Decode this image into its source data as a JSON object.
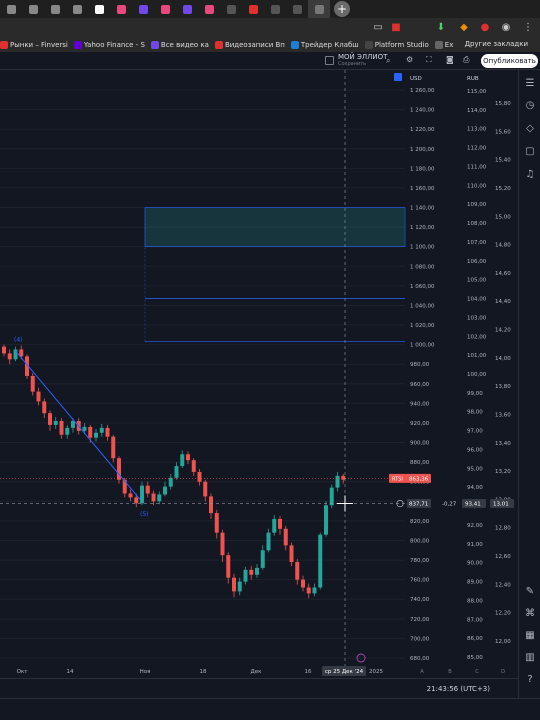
{
  "browser": {
    "bookmarks": [
      {
        "label": "Рынки – Finversi",
        "color": "#e03131"
      },
      {
        "label": "Yahoo Finance - S",
        "color": "#6001d2"
      },
      {
        "label": "Все видео ка",
        "color": "#7048e8"
      },
      {
        "label": "Видеозаписи Вп",
        "color": "#e03131"
      },
      {
        "label": "Трейдер Клабш",
        "color": "#1c7ed6"
      },
      {
        "label": "Platform Studio",
        "color": "#444"
      },
      {
        "label": "Ex",
        "color": "#666"
      }
    ],
    "other_bookmarks": "Другие закладки"
  },
  "header": {
    "layout_name": "МОЙ ЭЛЛИОТ",
    "layout_status": "Сохранить",
    "publish_label": "Опубликовать"
  },
  "axes": {
    "currency_left": "USD",
    "currency_mid": "RUB",
    "usd_ticks": [
      "1 260,00",
      "1 240,00",
      "1 220,00",
      "1 200,00",
      "1 180,00",
      "1 160,00",
      "1 140,00",
      "1 120,00",
      "1 100,00",
      "1 080,00",
      "1 060,00",
      "1 040,00",
      "1 020,00",
      "1 000,00",
      "980,00",
      "960,00",
      "940,00",
      "920,00",
      "900,00",
      "880,00",
      "860,00",
      "840,00",
      "820,00",
      "800,00",
      "780,00",
      "760,00",
      "740,00",
      "720,00",
      "700,00",
      "680,00"
    ],
    "rub_ticks": [
      "115,00",
      "114,00",
      "113,00",
      "112,00",
      "111,00",
      "110,00",
      "109,00",
      "108,00",
      "107,00",
      "106,00",
      "105,00",
      "104,00",
      "103,00",
      "102,00",
      "101,00",
      "100,00",
      "99,00",
      "98,00",
      "97,00",
      "96,00",
      "95,00",
      "94,00",
      "93,00",
      "92,00",
      "91,00",
      "90,00",
      "89,00",
      "88,00",
      "87,00",
      "86,00",
      "85,00"
    ],
    "right_ticks": [
      "15,80",
      "15,60",
      "15,40",
      "15,20",
      "15,00",
      "14,80",
      "14,60",
      "14,40",
      "14,20",
      "14,00",
      "13,80",
      "13,60",
      "13,40",
      "13,20",
      "13,00",
      "12,80",
      "12,60",
      "12,40",
      "12,20",
      "12,00"
    ],
    "time_labels": [
      {
        "label": "Окт"
      },
      {
        "label": "14"
      },
      {
        "label": "Ноя"
      },
      {
        "label": "18"
      },
      {
        "label": "Дек"
      },
      {
        "label": "16"
      },
      {
        "label": "2025"
      }
    ],
    "time_cursor_label": "ср 25 Дек '24"
  },
  "price_tags": {
    "rtsi_label": "RTSI",
    "rtsi_value": "863,36",
    "cursor_price": "837,71",
    "change": "-0,27",
    "rub_cursor": "93,41",
    "right_cursor": "13,01"
  },
  "wave_labels": {
    "w4": "(4)",
    "w5": "(5)"
  },
  "status": {
    "clock": "21:43:56 (UTC+3)"
  },
  "scale_letters": [
    "A",
    "B",
    "C",
    "D"
  ],
  "colors": {
    "bg": "#131722",
    "up": "#26a69a",
    "down": "#ef5350",
    "wave": "#2962ff",
    "grid": "#1e222d"
  },
  "candles": [
    [
      998,
      991,
      1000,
      988
    ],
    [
      991,
      985,
      995,
      980
    ],
    [
      985,
      995,
      998,
      983
    ],
    [
      995,
      988,
      999,
      985
    ],
    [
      988,
      968,
      990,
      965
    ],
    [
      968,
      952,
      971,
      948
    ],
    [
      952,
      942,
      956,
      938
    ],
    [
      942,
      930,
      945,
      925
    ],
    [
      930,
      918,
      933,
      912
    ],
    [
      918,
      922,
      926,
      914
    ],
    [
      922,
      908,
      925,
      904
    ],
    [
      908,
      915,
      918,
      904
    ],
    [
      915,
      922,
      925,
      910
    ],
    [
      922,
      912,
      925,
      908
    ],
    [
      912,
      916,
      920,
      909
    ],
    [
      916,
      905,
      918,
      900
    ],
    [
      905,
      910,
      914,
      901
    ],
    [
      910,
      915,
      919,
      906
    ],
    [
      915,
      906,
      918,
      902
    ],
    [
      906,
      884,
      908,
      880
    ],
    [
      884,
      862,
      886,
      858
    ],
    [
      862,
      848,
      864,
      844
    ],
    [
      848,
      844,
      852,
      840
    ],
    [
      844,
      838,
      848,
      834
    ],
    [
      838,
      856,
      860,
      836
    ],
    [
      856,
      848,
      860,
      844
    ],
    [
      848,
      840,
      851,
      836
    ],
    [
      840,
      847,
      850,
      837
    ],
    [
      847,
      855,
      860,
      845
    ],
    [
      855,
      864,
      868,
      852
    ],
    [
      864,
      876,
      880,
      862
    ],
    [
      876,
      888,
      892,
      874
    ],
    [
      888,
      882,
      891,
      878
    ],
    [
      882,
      870,
      884,
      866
    ],
    [
      870,
      860,
      873,
      856
    ],
    [
      860,
      845,
      862,
      840
    ],
    [
      845,
      828,
      848,
      822
    ],
    [
      828,
      808,
      831,
      802
    ],
    [
      808,
      785,
      811,
      778
    ],
    [
      785,
      762,
      788,
      756
    ],
    [
      762,
      748,
      766,
      742
    ],
    [
      748,
      758,
      762,
      744
    ],
    [
      758,
      770,
      773,
      755
    ],
    [
      770,
      765,
      774,
      760
    ],
    [
      765,
      772,
      776,
      762
    ],
    [
      772,
      790,
      795,
      770
    ],
    [
      790,
      808,
      812,
      788
    ],
    [
      808,
      822,
      826,
      805
    ],
    [
      822,
      812,
      825,
      806
    ],
    [
      812,
      795,
      815,
      790
    ],
    [
      795,
      778,
      798,
      774
    ],
    [
      778,
      760,
      781,
      755
    ],
    [
      760,
      752,
      764,
      748
    ],
    [
      752,
      746,
      756,
      741
    ],
    [
      746,
      752,
      756,
      743
    ],
    [
      752,
      806,
      808,
      750
    ],
    [
      806,
      836,
      840,
      804
    ],
    [
      836,
      854,
      857,
      833
    ],
    [
      854,
      866,
      870,
      850
    ],
    [
      866,
      862,
      868,
      858
    ]
  ]
}
